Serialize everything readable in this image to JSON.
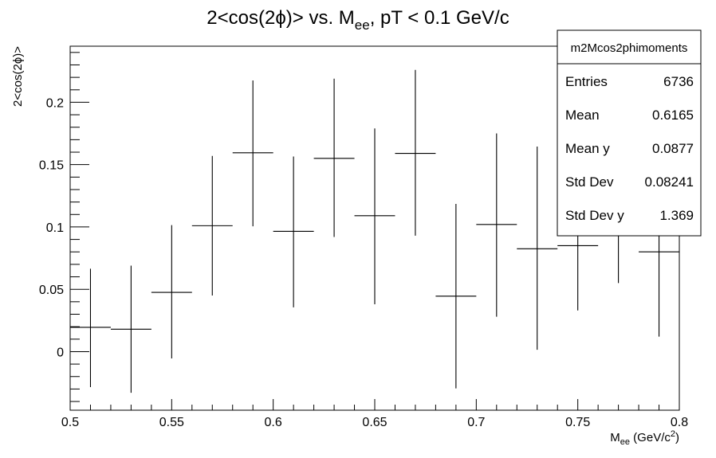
{
  "chart_data": {
    "type": "scatter",
    "title": {
      "prefix": "2<cos(2ϕ)> vs. M",
      "sub": "ee",
      "suffix": ", pT < 0.1 GeV/c"
    },
    "xlabel": {
      "main": "M",
      "sub": "ee",
      "mid": " (GeV/c",
      "sup": "2",
      "end": ")"
    },
    "ylabel": "2<cos(2ϕ)>",
    "xlim": [
      0.5,
      0.8
    ],
    "ylim": [
      -0.047,
      0.245
    ],
    "xticks": [
      "0.5",
      "0.55",
      "0.6",
      "0.65",
      "0.7",
      "0.75",
      "0.8"
    ],
    "yticks": [
      "0",
      "0.05",
      "0.1",
      "0.15",
      "0.2"
    ],
    "grid": false,
    "bin_half_width": 0.01,
    "points": [
      {
        "x": 0.51,
        "y": 0.0195,
        "err_low": 0.048,
        "err_high": 0.047
      },
      {
        "x": 0.53,
        "y": 0.018,
        "err_low": 0.051,
        "err_high": 0.051
      },
      {
        "x": 0.55,
        "y": 0.0475,
        "err_low": 0.053,
        "err_high": 0.054
      },
      {
        "x": 0.57,
        "y": 0.101,
        "err_low": 0.056,
        "err_high": 0.056
      },
      {
        "x": 0.59,
        "y": 0.1595,
        "err_low": 0.059,
        "err_high": 0.058
      },
      {
        "x": 0.61,
        "y": 0.0965,
        "err_low": 0.061,
        "err_high": 0.06
      },
      {
        "x": 0.63,
        "y": 0.155,
        "err_low": 0.063,
        "err_high": 0.064
      },
      {
        "x": 0.65,
        "y": 0.109,
        "err_low": 0.071,
        "err_high": 0.07
      },
      {
        "x": 0.67,
        "y": 0.159,
        "err_low": 0.066,
        "err_high": 0.067
      },
      {
        "x": 0.69,
        "y": 0.0445,
        "err_low": 0.074,
        "err_high": 0.074
      },
      {
        "x": 0.71,
        "y": 0.102,
        "err_low": 0.074,
        "err_high": 0.073
      },
      {
        "x": 0.73,
        "y": 0.0825,
        "err_low": 0.081,
        "err_high": 0.082
      },
      {
        "x": 0.75,
        "y": 0.085,
        "err_low": 0.052,
        "err_high": 0.052
      },
      {
        "x": 0.77,
        "y": 0.104,
        "err_low": 0.049,
        "err_high": 0.049
      },
      {
        "x": 0.79,
        "y": 0.08,
        "err_low": 0.068,
        "err_high": 0.068
      }
    ],
    "stats_box": {
      "name": "m2Mcos2phimoments",
      "rows": [
        {
          "label": "Entries",
          "value": "6736"
        },
        {
          "label": "Mean",
          "value": "0.6165"
        },
        {
          "label": "Mean y",
          "value": "0.0877"
        },
        {
          "label": "Std Dev",
          "value": "0.08241"
        },
        {
          "label": "Std Dev y",
          "value": "1.369"
        }
      ]
    }
  }
}
